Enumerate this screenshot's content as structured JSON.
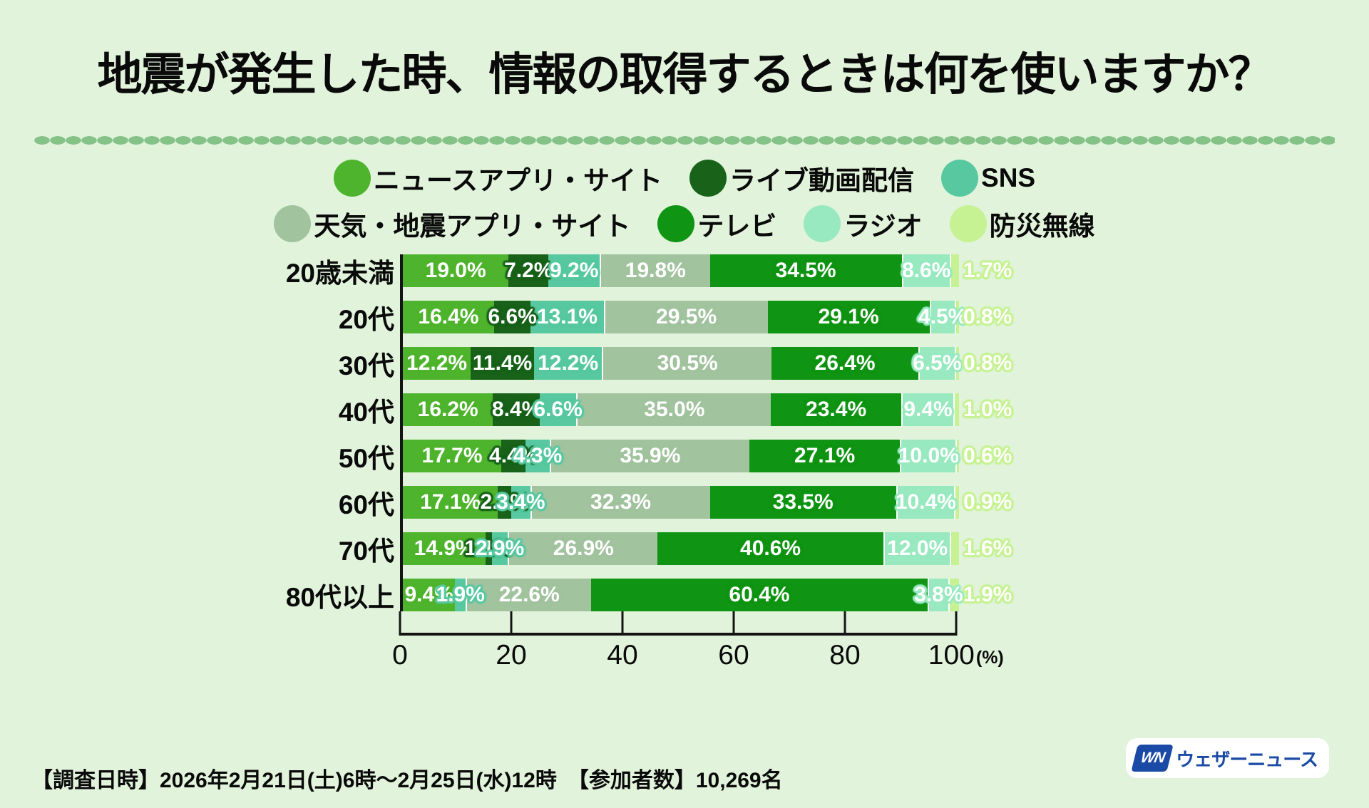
{
  "title": "地震が発生した時、情報の取得するときは何を使いますか？",
  "chart_data": {
    "type": "bar",
    "orientation": "horizontal-stacked",
    "title": "地震が発生した時、情報の取得するときは何を使いますか？",
    "categories": [
      "20歳未満",
      "20代",
      "30代",
      "40代",
      "50代",
      "60代",
      "70代",
      "80代以上"
    ],
    "series": [
      {
        "name": "ニュースアプリ・サイト",
        "color": "#4FB42D",
        "values": [
          19.0,
          16.4,
          12.2,
          16.2,
          17.7,
          17.1,
          14.9,
          9.4
        ]
      },
      {
        "name": "ライブ動画配信",
        "color": "#186219",
        "values": [
          7.2,
          6.6,
          11.4,
          8.4,
          4.4,
          2.4,
          1.1,
          0.0
        ]
      },
      {
        "name": "SNS",
        "color": "#57C8A0",
        "values": [
          9.2,
          13.1,
          12.2,
          6.6,
          4.3,
          3.4,
          2.9,
          1.9
        ]
      },
      {
        "name": "天気・地震アプリ・サイト",
        "color": "#A1C39E",
        "values": [
          19.8,
          29.5,
          30.5,
          35.0,
          35.9,
          32.3,
          26.9,
          22.6
        ]
      },
      {
        "name": "テレビ",
        "color": "#109413",
        "values": [
          34.5,
          29.1,
          26.4,
          23.4,
          27.1,
          33.5,
          40.6,
          60.4
        ]
      },
      {
        "name": "ラジオ",
        "color": "#99E9C0",
        "values": [
          8.6,
          4.5,
          6.5,
          9.4,
          10.0,
          10.4,
          12.0,
          3.8
        ]
      },
      {
        "name": "防災無線",
        "color": "#C6F293",
        "values": [
          1.7,
          0.8,
          0.8,
          1.0,
          0.6,
          0.9,
          1.6,
          1.9
        ]
      }
    ],
    "value_suffix": "%",
    "xlim": [
      0,
      100
    ],
    "x_ticks": [
      0,
      20,
      40,
      60,
      80,
      100
    ],
    "x_unit_label": "(%)",
    "legend_rows": [
      [
        0,
        1,
        2
      ],
      [
        3,
        4,
        5,
        6
      ]
    ],
    "legend_position": "top",
    "grid": false,
    "white_separator_series": [
      3,
      5,
      6
    ]
  },
  "footer": {
    "note": "【調査日時】2026年2月21日(土)6時〜2月25日(水)12時　【参加者数】10,269名"
  },
  "logo": {
    "mark": "WN",
    "text": "ウェザーニュース",
    "color": "#1B4AA6"
  },
  "theme": {
    "background": "#E1F3DB",
    "dotted_divider": "#85C287",
    "axis_color": "#141414"
  }
}
